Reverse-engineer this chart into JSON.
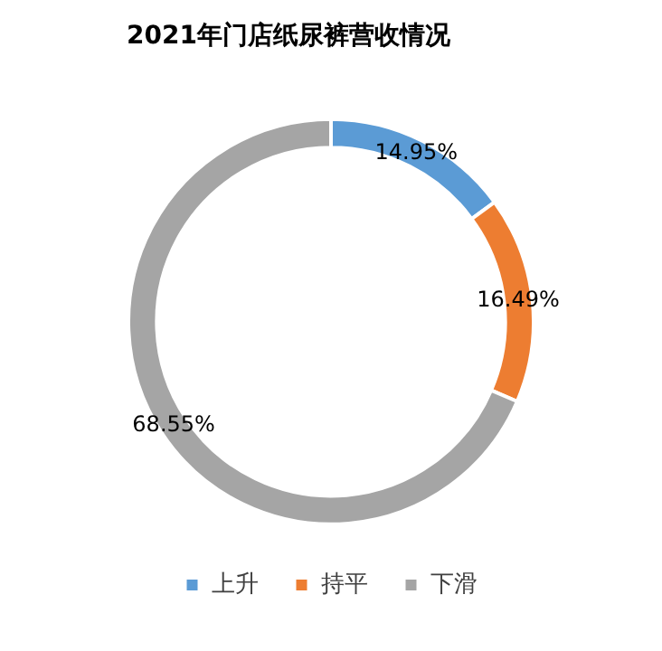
{
  "chart_data": {
    "type": "donut",
    "title": "2021年门店纸尿裤营收情况",
    "categories": [
      "上升",
      "持平",
      "下滑"
    ],
    "values": [
      14.95,
      16.49,
      68.55
    ],
    "colors": [
      "#5b9bd5",
      "#ed7d31",
      "#a5a5a5"
    ],
    "value_labels": [
      "14.95%",
      "16.49%",
      "68.55%"
    ],
    "legend": "bottom"
  }
}
